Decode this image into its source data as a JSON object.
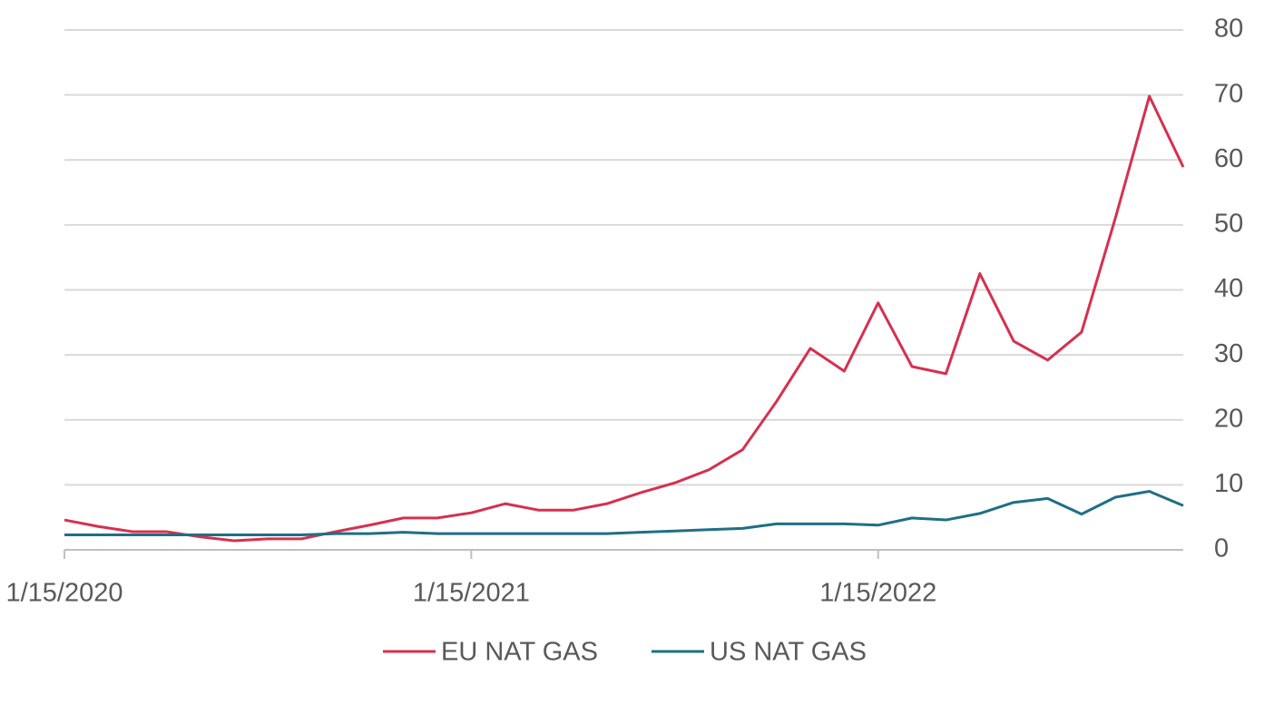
{
  "chart_data": {
    "type": "line",
    "categories": [
      "1/15/2020",
      null,
      null,
      null,
      null,
      null,
      null,
      null,
      null,
      null,
      null,
      null,
      "1/15/2021",
      null,
      null,
      null,
      null,
      null,
      null,
      null,
      null,
      null,
      null,
      null,
      "1/15/2022",
      null,
      null,
      null,
      null,
      null,
      null,
      null,
      null,
      null
    ],
    "series": [
      {
        "name": "EU NAT GAS",
        "color": "#d6304f",
        "values": [
          4.6,
          3.6,
          2.8,
          2.8,
          2.0,
          1.4,
          1.7,
          1.7,
          2.8,
          3.8,
          4.9,
          4.9,
          5.7,
          7.1,
          6.1,
          6.1,
          7.1,
          8.8,
          10.3,
          12.3,
          15.4,
          22.8,
          31.0,
          27.5,
          38.0,
          28.2,
          27.1,
          42.5,
          32.1,
          29.2,
          33.5,
          51.1,
          69.8,
          58.9
        ]
      },
      {
        "name": "US NAT GAS",
        "color": "#1f6f85",
        "values": [
          2.3,
          2.3,
          2.3,
          2.3,
          2.3,
          2.3,
          2.3,
          2.3,
          2.5,
          2.5,
          2.7,
          2.5,
          2.5,
          2.5,
          2.5,
          2.5,
          2.5,
          2.7,
          2.9,
          3.1,
          3.3,
          4.0,
          4.0,
          4.0,
          3.8,
          4.9,
          4.6,
          5.6,
          7.3,
          7.9,
          5.5,
          8.1,
          9.0,
          6.8
        ]
      }
    ],
    "ylim": [
      0,
      80
    ],
    "yticks": [
      0,
      10,
      20,
      30,
      40,
      50,
      60,
      70,
      80
    ],
    "grid": true,
    "legend": "bottom"
  }
}
